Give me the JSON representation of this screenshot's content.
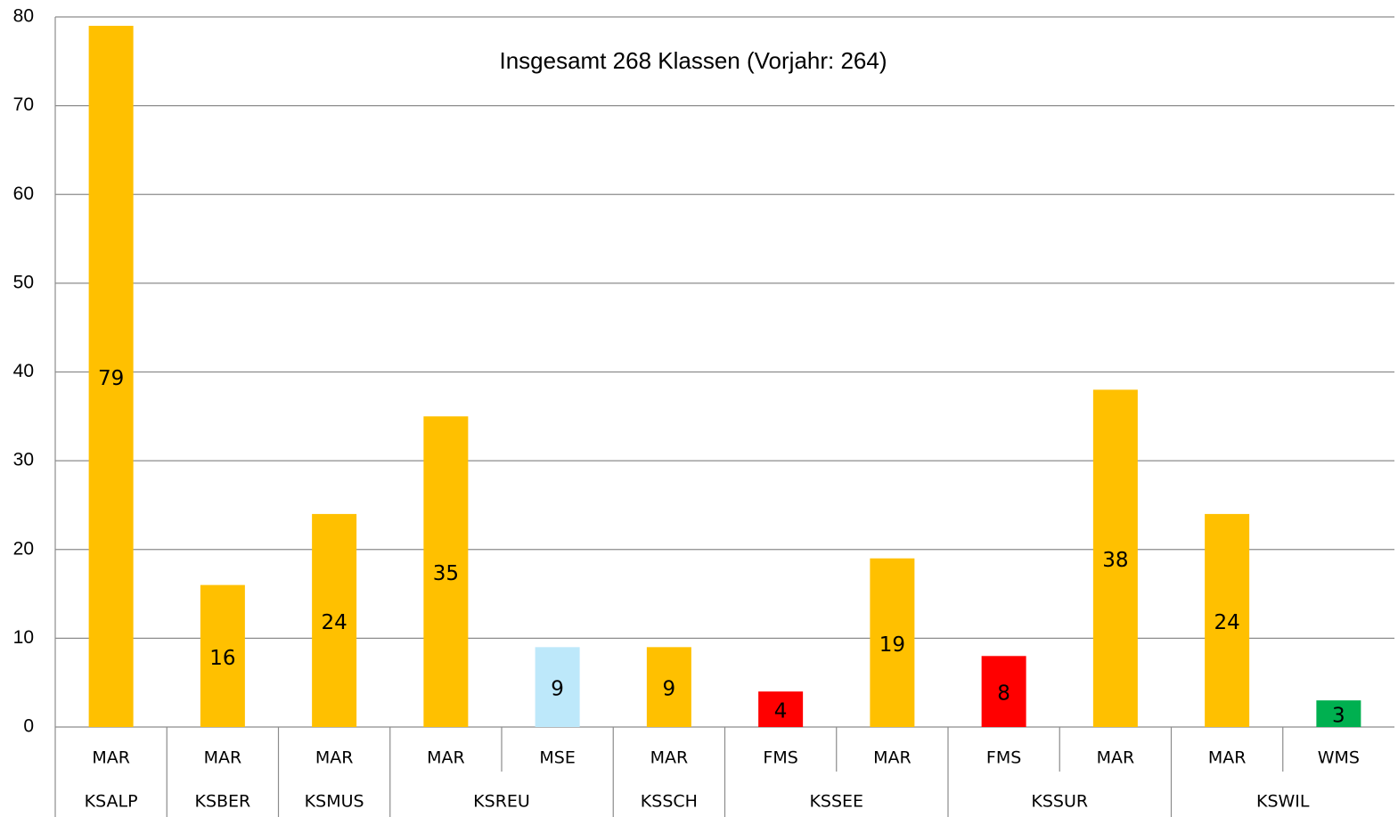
{
  "chart_data": {
    "type": "bar",
    "title": "Insgesamt 268 Klassen (Vorjahr: 264)",
    "categories": [
      "MAR",
      "MAR",
      "MAR",
      "MAR",
      "MSE",
      "MAR",
      "FMS",
      "MAR",
      "FMS",
      "MAR",
      "MAR",
      "WMS"
    ],
    "category_groups": [
      "KSALP",
      "KSBER",
      "KSMUS",
      "KSREU",
      "KSREU",
      "KSSCH",
      "KSSEE",
      "KSSEE",
      "KSSUR",
      "KSSUR",
      "KSWIL",
      "KSWIL"
    ],
    "values": [
      79,
      16,
      24,
      35,
      9,
      9,
      4,
      19,
      8,
      38,
      24,
      3
    ],
    "colors": [
      "#ffc000",
      "#ffc000",
      "#ffc000",
      "#ffc000",
      "#bde8fa",
      "#ffc000",
      "#ff0000",
      "#ffc000",
      "#ff0000",
      "#ffc000",
      "#ffc000",
      "#00b050"
    ],
    "ylim": [
      0,
      80
    ],
    "yticks": [
      0,
      10,
      20,
      30,
      40,
      50,
      60,
      70,
      80
    ],
    "grid": true
  }
}
